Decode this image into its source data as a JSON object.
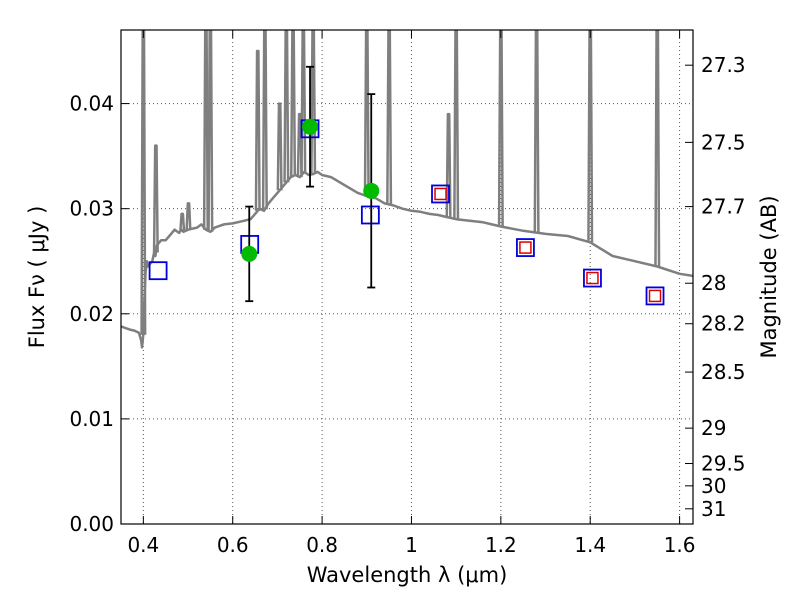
{
  "chart_data": {
    "type": "scatter",
    "xlabel": "Wavelength  λ (μm)",
    "ylabel": "Flux  Fν  ( μJy )",
    "y2label": "Magnitude (AB)",
    "xlim": [
      0.35,
      1.63
    ],
    "ylim": [
      0.0,
      0.047
    ],
    "grid": true,
    "x_ticks": [
      0.4,
      0.6,
      0.8,
      1.0,
      1.2,
      1.4,
      1.6
    ],
    "x_tick_labels": [
      "0.4",
      "0.6",
      "0.8",
      "1",
      "1.2",
      "1.4",
      "1.6"
    ],
    "y_ticks": [
      0.0,
      0.01,
      0.02,
      0.03,
      0.04
    ],
    "y_tick_labels": [
      "0.00",
      "0.01",
      "0.02",
      "0.03",
      "0.04"
    ],
    "mag_ticks": [
      27.3,
      27.5,
      27.7,
      28,
      28.2,
      28.5,
      29,
      29.5,
      30,
      31
    ],
    "mag_tick_labels": [
      "27.3",
      "27.5",
      "27.7",
      "28",
      "28.2",
      "28.5",
      "29",
      "29.5",
      "30",
      "31"
    ],
    "colors": {
      "sed": "#7f7f7f",
      "observed": "#00bb00",
      "model_bands": "#0000dd",
      "predicted": "#dd0000",
      "errorbar": "#000000",
      "grid": "#555555"
    },
    "series": [
      {
        "kind": "line",
        "x": [
          0.35,
          0.37,
          0.38,
          0.39,
          0.395,
          0.397,
          0.4,
          0.401,
          0.403,
          0.405,
          0.408,
          0.41,
          0.42,
          0.425,
          0.427,
          0.43,
          0.44,
          0.45,
          0.46,
          0.47,
          0.48,
          0.485,
          0.49,
          0.5,
          0.52,
          0.53,
          0.54,
          0.55,
          0.56,
          0.58,
          0.6,
          0.62,
          0.64,
          0.65,
          0.66,
          0.67,
          0.68,
          0.69,
          0.7,
          0.71,
          0.72,
          0.73,
          0.74,
          0.75,
          0.76,
          0.77,
          0.78,
          0.79,
          0.8,
          0.82,
          0.84,
          0.86,
          0.88,
          0.9,
          0.92,
          0.94,
          0.96,
          0.98,
          1.0,
          1.02,
          1.04,
          1.06,
          1.08,
          1.1,
          1.12,
          1.14,
          1.16,
          1.18,
          1.2,
          1.25,
          1.3,
          1.35,
          1.4,
          1.45,
          1.5,
          1.55,
          1.6,
          1.63
        ],
        "y": [
          0.0188,
          0.0185,
          0.0184,
          0.0182,
          0.0175,
          0.0168,
          0.018,
          0.02,
          0.022,
          0.024,
          0.025,
          0.0245,
          0.025,
          0.026,
          0.0255,
          0.0265,
          0.027,
          0.027,
          0.0275,
          0.028,
          0.0277,
          0.028,
          0.0278,
          0.028,
          0.0282,
          0.0285,
          0.028,
          0.0278,
          0.0282,
          0.0285,
          0.0286,
          0.0288,
          0.029,
          0.0295,
          0.03,
          0.0298,
          0.0305,
          0.031,
          0.0315,
          0.032,
          0.0325,
          0.033,
          0.0332,
          0.033,
          0.0335,
          0.0332,
          0.0333,
          0.0335,
          0.0332,
          0.033,
          0.0325,
          0.032,
          0.0315,
          0.0312,
          0.031,
          0.0305,
          0.0303,
          0.03,
          0.0298,
          0.0297,
          0.0295,
          0.0294,
          0.0292,
          0.029,
          0.0289,
          0.0288,
          0.0287,
          0.0285,
          0.0283,
          0.0279,
          0.0276,
          0.0274,
          0.0268,
          0.0255,
          0.025,
          0.0245,
          0.0238,
          0.0236
        ]
      },
      {
        "kind": "emission_lines",
        "x": [
          0.4,
          0.428,
          0.487,
          0.501,
          0.54,
          0.55,
          0.656,
          0.672,
          0.705,
          0.72,
          0.735,
          0.75,
          0.758,
          0.78,
          0.9,
          0.95,
          1.083,
          1.1,
          1.2,
          1.28,
          1.4,
          1.55
        ],
        "y": [
          0.047,
          0.036,
          0.0295,
          0.0305,
          0.047,
          0.047,
          0.045,
          0.047,
          0.04,
          0.047,
          0.047,
          0.039,
          0.047,
          0.047,
          0.047,
          0.047,
          0.039,
          0.047,
          0.047,
          0.047,
          0.047,
          0.047
        ]
      },
      {
        "kind": "observed",
        "x": [
          0.637,
          0.773,
          0.91
        ],
        "y": [
          0.0257,
          0.0378,
          0.0317
        ],
        "yerr": [
          0.0045,
          0.0057,
          0.0092
        ]
      },
      {
        "kind": "model_bands",
        "x": [
          0.433,
          0.638,
          0.773,
          0.908,
          1.065,
          1.255,
          1.405,
          1.545
        ],
        "y": [
          0.0241,
          0.0266,
          0.0376,
          0.0294,
          0.0314,
          0.0263,
          0.0234,
          0.0217
        ]
      },
      {
        "kind": "predicted",
        "x": [
          1.065,
          1.255,
          1.405,
          1.545
        ],
        "y": [
          0.0314,
          0.0263,
          0.0234,
          0.0217
        ]
      }
    ]
  }
}
